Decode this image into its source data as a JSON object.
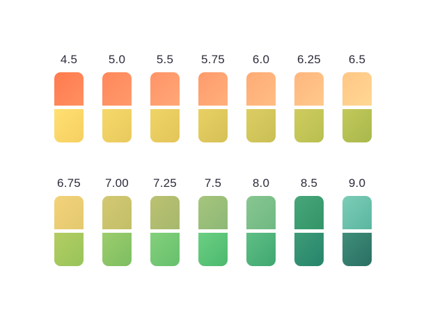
{
  "ph_scale": {
    "rows": [
      {
        "strips": [
          {
            "label": "4.5",
            "top_colors": [
              "#ff7a4f",
              "#ff9060"
            ],
            "bottom_colors": [
              "#ffe070",
              "#f6cf62"
            ]
          },
          {
            "label": "5.0",
            "top_colors": [
              "#ff875a",
              "#ff9a6c"
            ],
            "bottom_colors": [
              "#f5d86a",
              "#e9c95d"
            ]
          },
          {
            "label": "5.5",
            "top_colors": [
              "#ff9467",
              "#ffa777"
            ],
            "bottom_colors": [
              "#efd466",
              "#e3c55a"
            ]
          },
          {
            "label": "5.75",
            "top_colors": [
              "#ff9a6b",
              "#ffb07c"
            ],
            "bottom_colors": [
              "#e8d063",
              "#d6c157"
            ]
          },
          {
            "label": "6.0",
            "top_colors": [
              "#ffab75",
              "#ffbd85"
            ],
            "bottom_colors": [
              "#dccd62",
              "#c9bf55"
            ]
          },
          {
            "label": "6.25",
            "top_colors": [
              "#ffb67d",
              "#ffc98c"
            ],
            "bottom_colors": [
              "#cfcc5f",
              "#b8bf50"
            ]
          },
          {
            "label": "6.5",
            "top_colors": [
              "#ffc685",
              "#ffd794"
            ],
            "bottom_colors": [
              "#c3c85a",
              "#a8b84c"
            ]
          }
        ]
      },
      {
        "strips": [
          {
            "label": "6.75",
            "top_colors": [
              "#f3d27a",
              "#e3c96f"
            ],
            "bottom_colors": [
              "#b4cd62",
              "#97c45a"
            ]
          },
          {
            "label": "7.00",
            "top_colors": [
              "#d4c872",
              "#c2bf68"
            ],
            "bottom_colors": [
              "#9ccd6c",
              "#7dbe62"
            ]
          },
          {
            "label": "7.25",
            "top_colors": [
              "#bcc172",
              "#a6b86d"
            ],
            "bottom_colors": [
              "#84d07b",
              "#66c06d"
            ]
          },
          {
            "label": "7.5",
            "top_colors": [
              "#a6c57c",
              "#8db877"
            ],
            "bottom_colors": [
              "#6ccf82",
              "#4bb96e"
            ]
          },
          {
            "label": "8.0",
            "top_colors": [
              "#88c690",
              "#6fb883"
            ],
            "bottom_colors": [
              "#5fbf85",
              "#3fa770"
            ]
          },
          {
            "label": "8.5",
            "top_colors": [
              "#47a77a",
              "#339468"
            ],
            "bottom_colors": [
              "#3e9c79",
              "#26846a"
            ]
          },
          {
            "label": "9.0",
            "top_colors": [
              "#7ccdb7",
              "#5bb6a0"
            ],
            "bottom_colors": [
              "#3f8e7a",
              "#2a6f62"
            ]
          }
        ]
      }
    ],
    "label_color": "#2b2b3a",
    "background": "#ffffff"
  }
}
